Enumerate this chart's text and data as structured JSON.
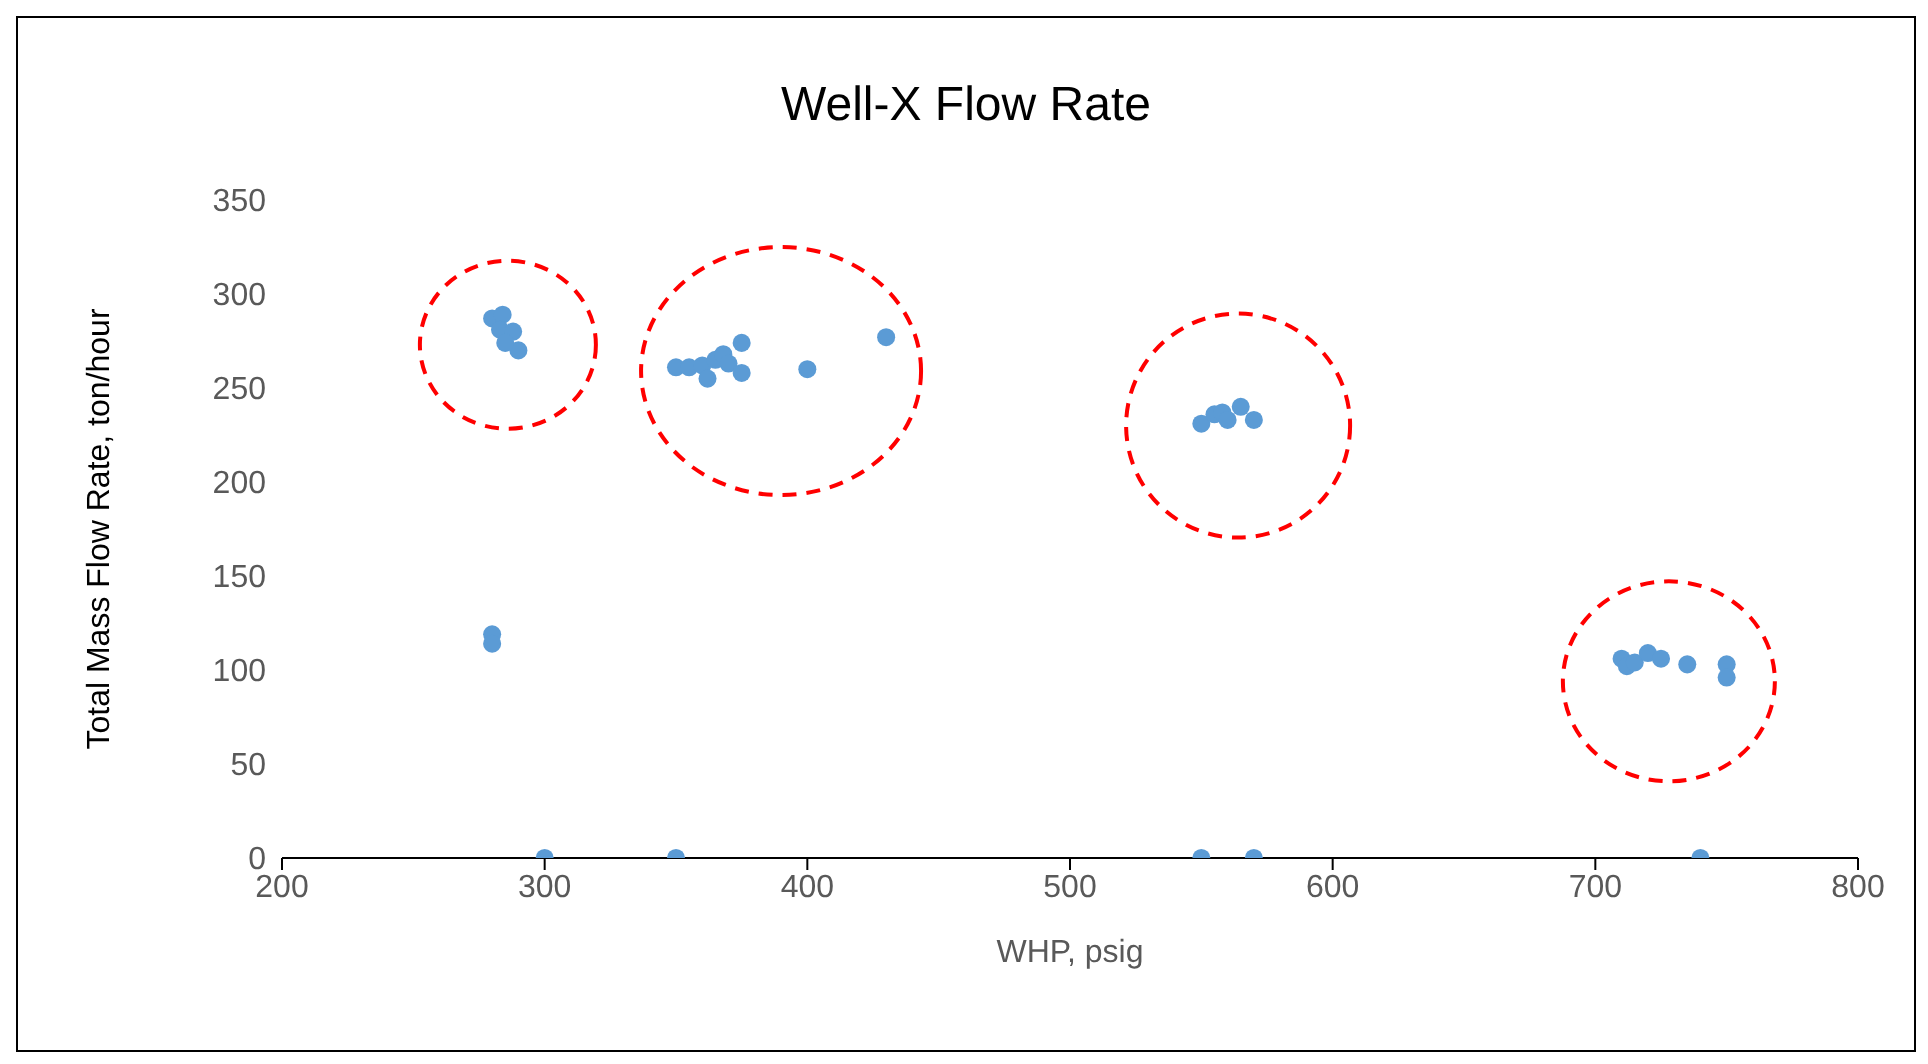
{
  "chart_data": {
    "type": "scatter",
    "title": "Well-X Flow Rate",
    "xlabel": "WHP, psig",
    "ylabel": "Total Mass Flow Rate, ton/hour",
    "xlim": [
      200,
      800
    ],
    "xticks": [
      200,
      300,
      400,
      500,
      600,
      700,
      800
    ],
    "ylim": [
      0,
      350
    ],
    "yticks": [
      0,
      50,
      100,
      150,
      200,
      250,
      300,
      350
    ],
    "grid": false,
    "marker": "circle",
    "series": [
      {
        "color": "#5b9bd5",
        "x": [
          280,
          284,
          283,
          288,
          290,
          285,
          280,
          280,
          350,
          355,
          360,
          362,
          365,
          368,
          370,
          375,
          375,
          400,
          430,
          550,
          555,
          558,
          560,
          565,
          568,
          570,
          710,
          712,
          715,
          720,
          725,
          735,
          750,
          750,
          300,
          350,
          550,
          570,
          740
        ],
        "values": [
          287,
          289,
          281,
          280,
          270,
          274,
          119,
          114,
          261,
          261,
          262,
          255,
          265,
          268,
          263,
          274,
          258,
          260,
          277,
          231,
          236,
          237,
          233,
          240,
          null,
          233,
          106,
          102,
          104,
          109,
          106,
          103,
          103,
          96,
          0,
          0,
          0,
          0,
          0
        ]
      }
    ]
  }
}
